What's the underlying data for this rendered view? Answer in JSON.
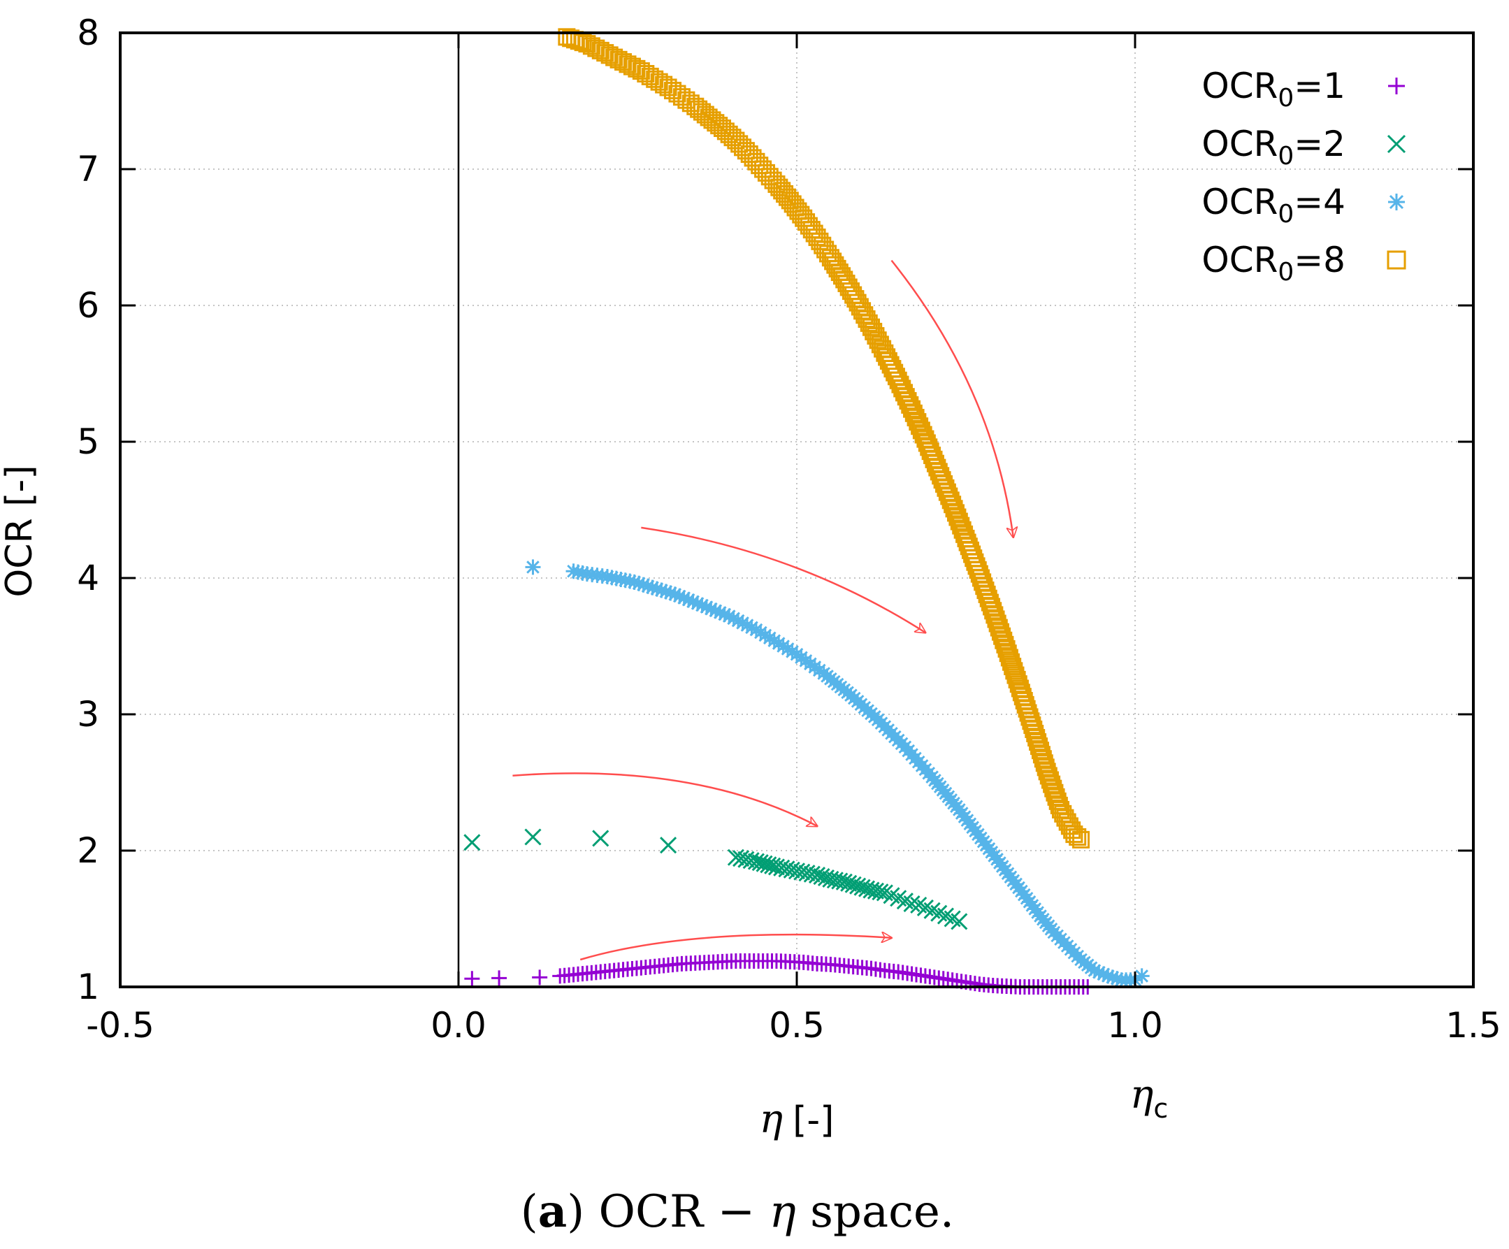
{
  "chart_data": {
    "type": "scatter",
    "xlabel": "[-]",
    "xlabel_symbol": "η",
    "ylabel": "OCR [-]",
    "xlim": [
      -0.5,
      1.5
    ],
    "ylim": [
      1,
      8
    ],
    "x_ticks": [
      -0.5,
      0.0,
      0.5,
      1.0,
      1.5
    ],
    "x_tick_labels": [
      "-0.5",
      "0.0",
      "0.5",
      "1.0",
      "1.5"
    ],
    "y_ticks": [
      1,
      2,
      3,
      4,
      5,
      6,
      7,
      8
    ],
    "y_tick_labels": [
      "1",
      "2",
      "3",
      "4",
      "5",
      "6",
      "7",
      "8"
    ],
    "grid": true,
    "vertical_reference_line_x": 0.0,
    "annotation": {
      "symbol": "η",
      "subscript": "c",
      "x": 1.0
    },
    "legend_position": "top-right",
    "series": [
      {
        "name": "OCR",
        "subscript": "0",
        "suffix": "=1",
        "color": "#9400d3",
        "marker": "plus",
        "points": [
          [
            0.02,
            1.06
          ],
          [
            0.06,
            1.065
          ],
          [
            0.12,
            1.07
          ],
          [
            0.15,
            1.08
          ],
          [
            0.17,
            1.09
          ],
          [
            0.19,
            1.1
          ],
          [
            0.21,
            1.11
          ],
          [
            0.23,
            1.12
          ],
          [
            0.25,
            1.13
          ],
          [
            0.27,
            1.14
          ],
          [
            0.29,
            1.15
          ],
          [
            0.31,
            1.16
          ],
          [
            0.33,
            1.17
          ],
          [
            0.35,
            1.175
          ],
          [
            0.37,
            1.18
          ],
          [
            0.39,
            1.185
          ],
          [
            0.41,
            1.19
          ],
          [
            0.43,
            1.19
          ],
          [
            0.45,
            1.19
          ],
          [
            0.47,
            1.19
          ],
          [
            0.49,
            1.185
          ],
          [
            0.51,
            1.18
          ],
          [
            0.53,
            1.17
          ],
          [
            0.55,
            1.165
          ],
          [
            0.57,
            1.155
          ],
          [
            0.59,
            1.145
          ],
          [
            0.61,
            1.135
          ],
          [
            0.63,
            1.12
          ],
          [
            0.65,
            1.11
          ],
          [
            0.67,
            1.095
          ],
          [
            0.69,
            1.08
          ],
          [
            0.71,
            1.065
          ],
          [
            0.73,
            1.05
          ],
          [
            0.75,
            1.035
          ],
          [
            0.77,
            1.02
          ],
          [
            0.79,
            1.01
          ],
          [
            0.81,
            1.005
          ],
          [
            0.83,
            1.0
          ],
          [
            0.85,
            1.0
          ],
          [
            0.87,
            1.0
          ],
          [
            0.89,
            1.0
          ],
          [
            0.91,
            1.0
          ],
          [
            0.93,
            1.0
          ]
        ]
      },
      {
        "name": "OCR",
        "subscript": "0",
        "suffix": "=2",
        "color": "#009e73",
        "marker": "cross",
        "points": [
          [
            0.02,
            2.06
          ],
          [
            0.11,
            2.1
          ],
          [
            0.21,
            2.09
          ],
          [
            0.31,
            2.04
          ],
          [
            0.41,
            1.95
          ],
          [
            0.44,
            1.92
          ],
          [
            0.47,
            1.88
          ],
          [
            0.5,
            1.85
          ],
          [
            0.53,
            1.82
          ],
          [
            0.55,
            1.79
          ],
          [
            0.57,
            1.77
          ],
          [
            0.59,
            1.74
          ],
          [
            0.61,
            1.71
          ],
          [
            0.63,
            1.69
          ],
          [
            0.64,
            1.67
          ],
          [
            0.65,
            1.65
          ],
          [
            0.66,
            1.63
          ],
          [
            0.67,
            1.61
          ],
          [
            0.68,
            1.6
          ],
          [
            0.69,
            1.58
          ],
          [
            0.7,
            1.56
          ],
          [
            0.71,
            1.54
          ],
          [
            0.72,
            1.52
          ],
          [
            0.73,
            1.5
          ],
          [
            0.74,
            1.48
          ]
        ]
      },
      {
        "name": "OCR",
        "subscript": "0",
        "suffix": "=4",
        "color": "#56b4e9",
        "marker": "star",
        "points": [
          [
            0.11,
            4.08
          ],
          [
            0.17,
            4.05
          ],
          [
            0.19,
            4.03
          ],
          [
            0.22,
            4.01
          ],
          [
            0.24,
            3.99
          ],
          [
            0.26,
            3.97
          ],
          [
            0.28,
            3.94
          ],
          [
            0.3,
            3.91
          ],
          [
            0.32,
            3.88
          ],
          [
            0.34,
            3.84
          ],
          [
            0.36,
            3.8
          ],
          [
            0.38,
            3.76
          ],
          [
            0.4,
            3.72
          ],
          [
            0.42,
            3.67
          ],
          [
            0.44,
            3.62
          ],
          [
            0.46,
            3.56
          ],
          [
            0.48,
            3.5
          ],
          [
            0.5,
            3.44
          ],
          [
            0.52,
            3.37
          ],
          [
            0.54,
            3.3
          ],
          [
            0.56,
            3.22
          ],
          [
            0.58,
            3.14
          ],
          [
            0.6,
            3.05
          ],
          [
            0.62,
            2.96
          ],
          [
            0.64,
            2.86
          ],
          [
            0.66,
            2.76
          ],
          [
            0.68,
            2.65
          ],
          [
            0.7,
            2.54
          ],
          [
            0.72,
            2.42
          ],
          [
            0.74,
            2.3
          ],
          [
            0.76,
            2.17
          ],
          [
            0.78,
            2.04
          ],
          [
            0.8,
            1.91
          ],
          [
            0.82,
            1.78
          ],
          [
            0.84,
            1.65
          ],
          [
            0.86,
            1.52
          ],
          [
            0.88,
            1.4
          ],
          [
            0.9,
            1.3
          ],
          [
            0.92,
            1.2
          ],
          [
            0.94,
            1.12
          ],
          [
            0.96,
            1.08
          ],
          [
            0.98,
            1.05
          ],
          [
            1.0,
            1.05
          ],
          [
            1.01,
            1.08
          ]
        ]
      },
      {
        "name": "OCR",
        "subscript": "0",
        "suffix": "=8",
        "color": "#e69f00",
        "marker": "square",
        "points": [
          [
            0.16,
            7.97
          ],
          [
            0.19,
            7.92
          ],
          [
            0.21,
            7.87
          ],
          [
            0.23,
            7.82
          ],
          [
            0.25,
            7.77
          ],
          [
            0.27,
            7.72
          ],
          [
            0.29,
            7.66
          ],
          [
            0.31,
            7.6
          ],
          [
            0.33,
            7.53
          ],
          [
            0.35,
            7.46
          ],
          [
            0.37,
            7.38
          ],
          [
            0.39,
            7.3
          ],
          [
            0.41,
            7.21
          ],
          [
            0.43,
            7.11
          ],
          [
            0.45,
            7.0
          ],
          [
            0.47,
            6.89
          ],
          [
            0.49,
            6.77
          ],
          [
            0.51,
            6.64
          ],
          [
            0.53,
            6.5
          ],
          [
            0.55,
            6.35
          ],
          [
            0.57,
            6.19
          ],
          [
            0.59,
            6.02
          ],
          [
            0.61,
            5.84
          ],
          [
            0.63,
            5.65
          ],
          [
            0.65,
            5.45
          ],
          [
            0.67,
            5.24
          ],
          [
            0.69,
            5.02
          ],
          [
            0.71,
            4.78
          ],
          [
            0.73,
            4.54
          ],
          [
            0.75,
            4.29
          ],
          [
            0.77,
            4.03
          ],
          [
            0.79,
            3.76
          ],
          [
            0.81,
            3.48
          ],
          [
            0.83,
            3.19
          ],
          [
            0.85,
            2.89
          ],
          [
            0.87,
            2.58
          ],
          [
            0.89,
            2.3
          ],
          [
            0.91,
            2.12
          ],
          [
            0.92,
            2.08
          ]
        ]
      }
    ],
    "arrows": [
      {
        "from": [
          0.64,
          6.33
        ],
        "ctrl": [
          0.79,
          5.4
        ],
        "to": [
          0.82,
          4.3
        ]
      },
      {
        "from": [
          0.27,
          4.37
        ],
        "ctrl": [
          0.5,
          4.2
        ],
        "to": [
          0.69,
          3.6
        ]
      },
      {
        "from": [
          0.08,
          2.55
        ],
        "ctrl": [
          0.35,
          2.65
        ],
        "to": [
          0.53,
          2.18
        ]
      },
      {
        "from": [
          0.18,
          1.2
        ],
        "ctrl": [
          0.35,
          1.45
        ],
        "to": [
          0.64,
          1.36
        ]
      }
    ]
  },
  "caption": {
    "label": "a",
    "before": "(",
    "after": ") OCR − ",
    "symbol": "η",
    "end": " space."
  }
}
